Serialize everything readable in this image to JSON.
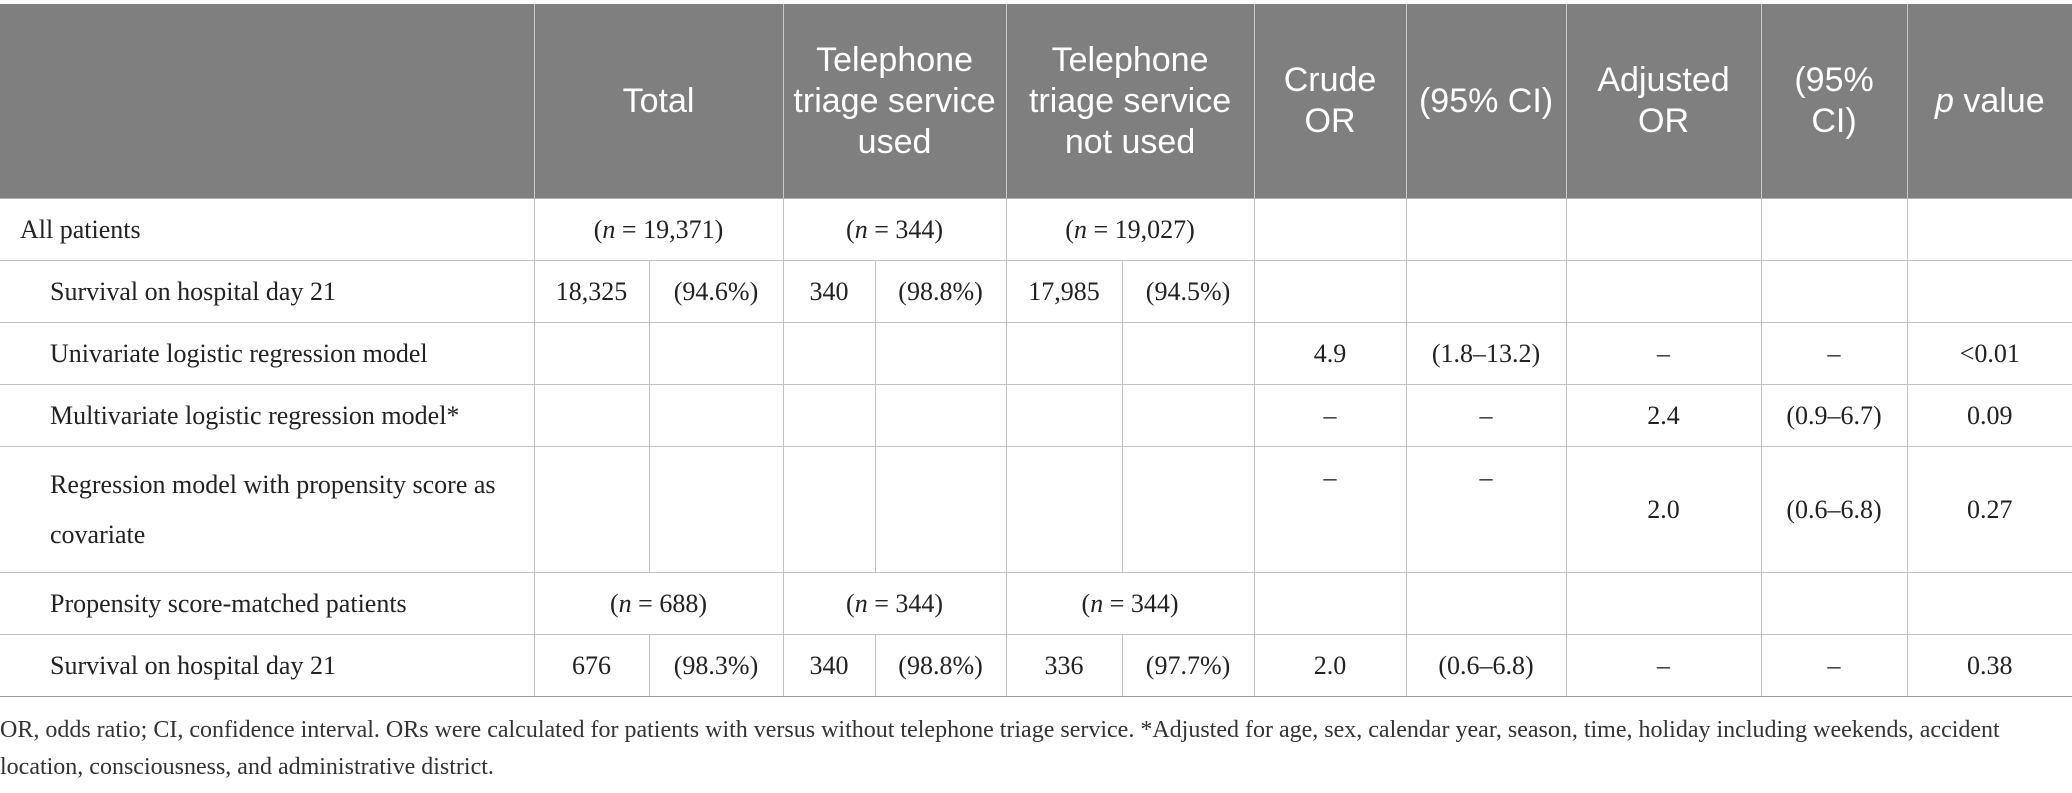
{
  "header": {
    "col_label": "",
    "total": "Total",
    "used": "Telephone triage service used",
    "not_used": "Telephone triage service not used",
    "crude_or": "Crude OR",
    "ci1": "(95% CI)",
    "adjusted_or": "Adjusted OR",
    "ci2": "(95% CI)",
    "p_italic": "p",
    "p_rest": " value"
  },
  "rows": {
    "all_patients": {
      "label": "All patients",
      "n_prefix": "(",
      "n_var": "n",
      "total_n": " = 19,371)",
      "used_n": " = 344)",
      "not_used_n": " = 19,027)"
    },
    "survival1": {
      "label": "Survival on hospital day 21",
      "total_count": "18,325",
      "total_pct": "(94.6%)",
      "used_count": "340",
      "used_pct": "(98.8%)",
      "not_used_count": "17,985",
      "not_used_pct": "(94.5%)"
    },
    "univariate": {
      "label": "Univariate logistic regression model",
      "crude_or": "4.9",
      "ci1": "(1.8–13.2)",
      "adjusted_or": "–",
      "ci2": "–",
      "p": "<0.01"
    },
    "multivariate": {
      "label": "Multivariate logistic regression model*",
      "crude_or": "–",
      "ci1": "–",
      "adjusted_or": "2.4",
      "ci2": "(0.9–6.7)",
      "p": "0.09"
    },
    "propensity_cov": {
      "label": "Regression model with propensity score as covariate",
      "crude_or": "–",
      "ci1": "–",
      "adjusted_or": "2.0",
      "ci2": "(0.6–6.8)",
      "p": "0.27"
    },
    "matched": {
      "label": "Propensity score-matched patients",
      "n_var": "n",
      "total_n": " = 688)",
      "used_n": " = 344)",
      "not_used_n": " = 344)"
    },
    "survival2": {
      "label": "Survival on hospital day 21",
      "total_count": "676",
      "total_pct": "(98.3%)",
      "used_count": "340",
      "used_pct": "(98.8%)",
      "not_used_count": "336",
      "not_used_pct": "(97.7%)",
      "crude_or": "2.0",
      "ci1": "(0.6–6.8)",
      "adjusted_or": "–",
      "ci2": "–",
      "p": "0.38"
    }
  },
  "footnote": "OR, odds ratio; CI, confidence interval. ORs were calculated for patients with versus without telephone triage service. *Adjusted for age, sex, calendar year, season, time, holiday including weekends, accident location, consciousness, and administrative district."
}
